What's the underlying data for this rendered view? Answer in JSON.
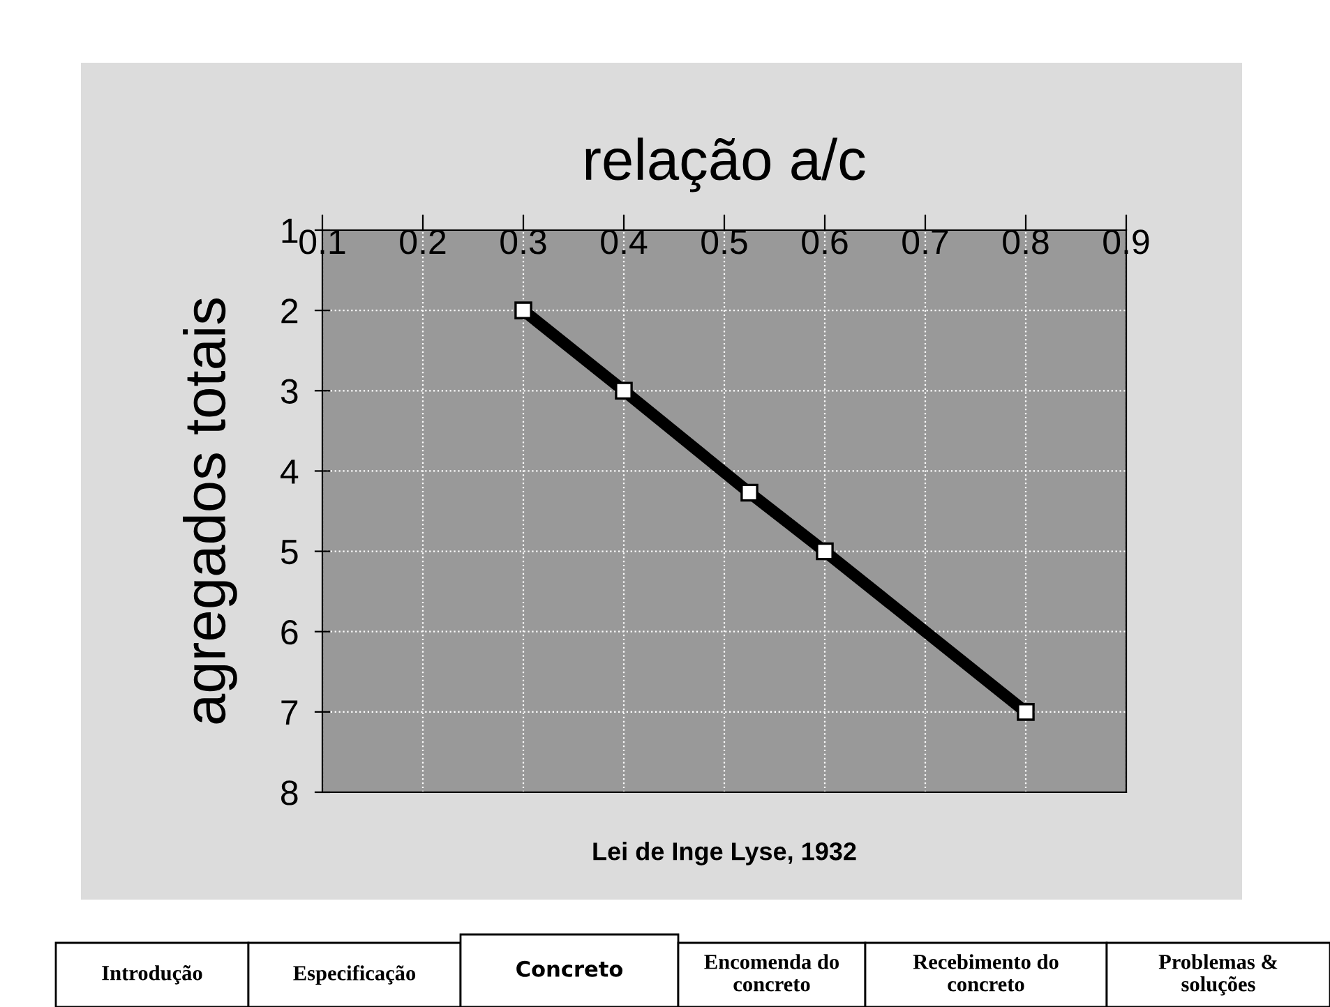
{
  "chart_data": {
    "type": "line",
    "xlabel": "relação a/c",
    "ylabel": "agregados totais",
    "x": [
      0.3,
      0.4,
      0.525,
      0.6,
      0.8
    ],
    "series": [
      {
        "color": "#000000",
        "values": [
          2,
          3,
          4.27,
          5,
          7
        ]
      }
    ],
    "xlim": [
      0.1,
      0.9
    ],
    "xticks": [
      0.1,
      0.2,
      0.3,
      0.4,
      0.5,
      0.6,
      0.7,
      0.8,
      0.9
    ],
    "ylim": [
      8,
      1
    ],
    "yticks": [
      1,
      2,
      3,
      4,
      5,
      6,
      7,
      8
    ],
    "grid": true,
    "marker": "square",
    "line_style": "solid",
    "legend": false,
    "annotations": [
      "Lei de Inge Lyse, 1932",
      "Introdução",
      "Especificação",
      "Concreto",
      "Encomenda do\nconcreto",
      "Recebimento do\nconcreto",
      "Problemas &\nsoluções"
    ]
  }
}
